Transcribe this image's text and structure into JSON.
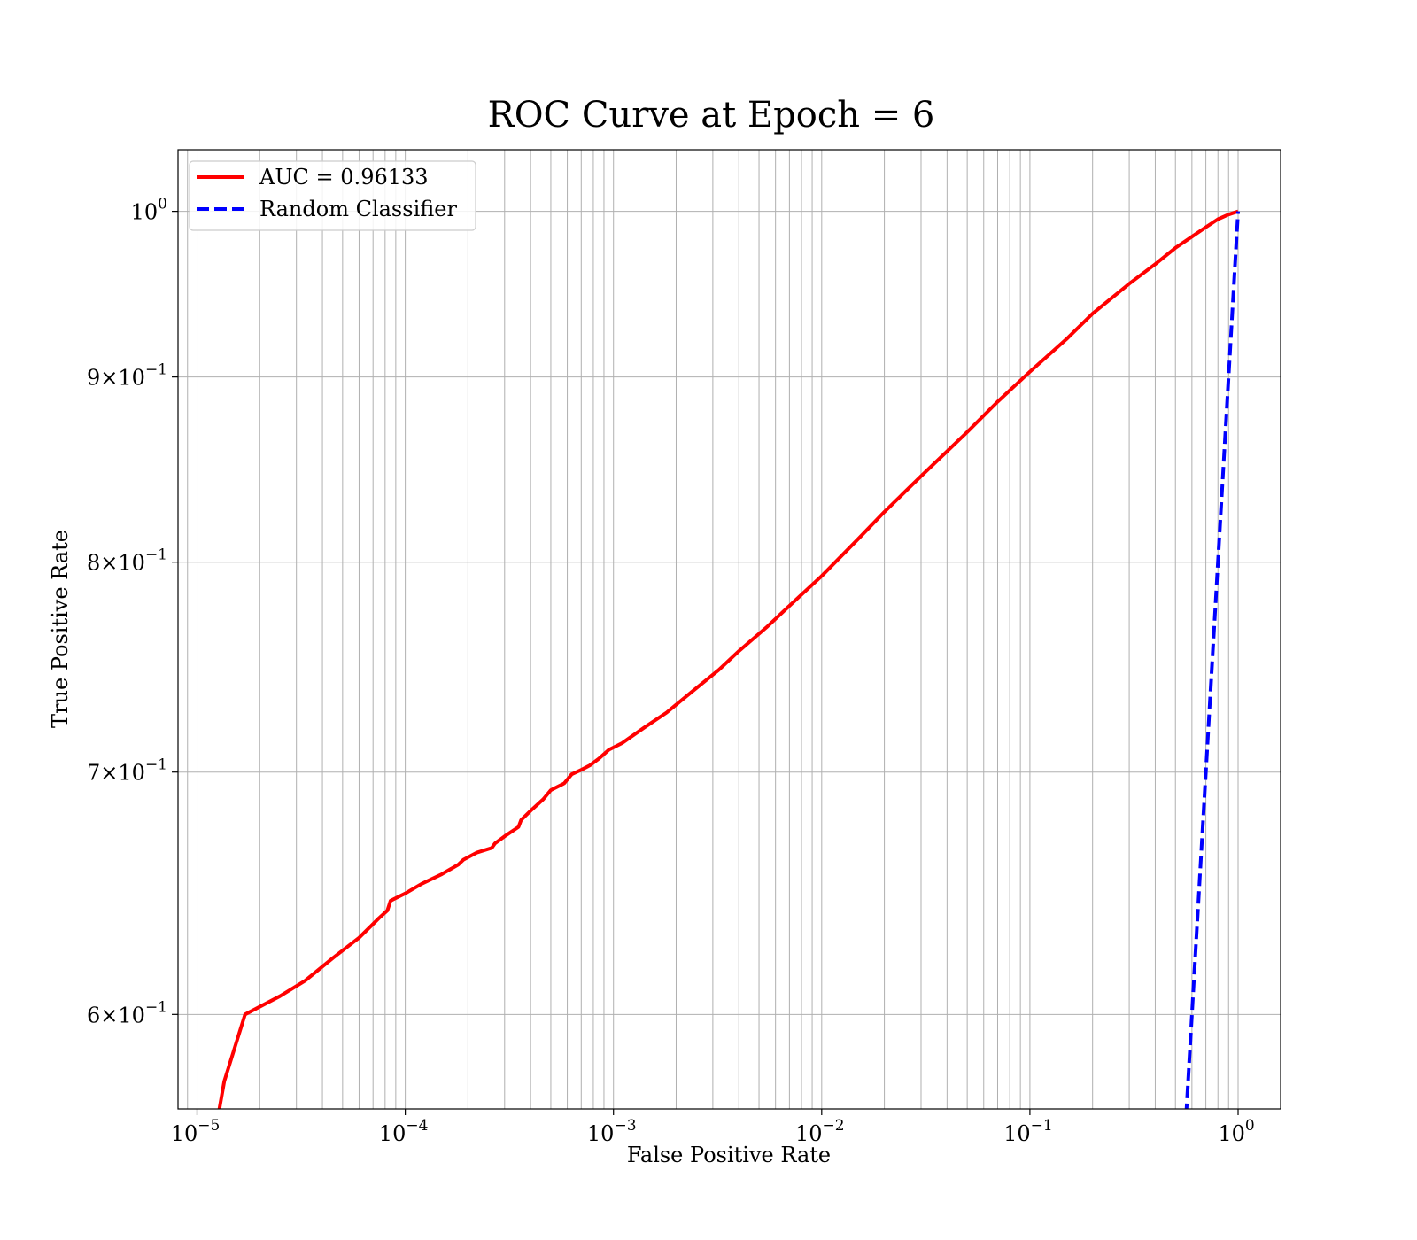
{
  "chart_data": {
    "type": "line",
    "title": "ROC Curve at Epoch = 6",
    "xlabel": "False Positive Rate",
    "ylabel": "True Positive Rate",
    "xscale": "log",
    "yscale": "log",
    "xlim": [
      8.1e-06,
      1.6
    ],
    "ylim": [
      0.565,
      1.04
    ],
    "grid": true,
    "grid_minor": true,
    "legend_placement": "upper-left",
    "x_ticks": [
      {
        "value": 1e-05,
        "base": "10",
        "exp": "−5"
      },
      {
        "value": 0.0001,
        "base": "10",
        "exp": "−4"
      },
      {
        "value": 0.001,
        "base": "10",
        "exp": "−3"
      },
      {
        "value": 0.01,
        "base": "10",
        "exp": "−2"
      },
      {
        "value": 0.1,
        "base": "10",
        "exp": "−1"
      },
      {
        "value": 1,
        "base": "10",
        "exp": "0"
      }
    ],
    "y_ticks": [
      {
        "value": 0.6,
        "base": "6×10",
        "exp": "−1"
      },
      {
        "value": 0.7,
        "base": "7×10",
        "exp": "−1"
      },
      {
        "value": 0.8,
        "base": "8×10",
        "exp": "−1"
      },
      {
        "value": 0.9,
        "base": "9×10",
        "exp": "−1"
      },
      {
        "value": 1.0,
        "base": "10",
        "exp": "0"
      }
    ],
    "series": [
      {
        "name": "AUC = 0.96133",
        "color": "#ff0000",
        "style": "solid",
        "x": [
          1.28e-05,
          1.35e-05,
          1.7e-05,
          2.5e-05,
          3.3e-05,
          4.5e-05,
          6e-05,
          7.5e-05,
          8.2e-05,
          8.5e-05,
          0.0001,
          0.00012,
          0.00015,
          0.00018,
          0.00019,
          0.00022,
          0.00026,
          0.00027,
          0.0003,
          0.00035,
          0.00036,
          0.0004,
          0.00046,
          0.0005,
          0.00058,
          0.00063,
          0.0007,
          0.00077,
          0.00085,
          0.00095,
          0.0011,
          0.0014,
          0.0018,
          0.0024,
          0.0032,
          0.004,
          0.0055,
          0.0075,
          0.01,
          0.015,
          0.02,
          0.03,
          0.05,
          0.07,
          0.1,
          0.15,
          0.2,
          0.3,
          0.4,
          0.5,
          0.6,
          0.7,
          0.8,
          0.9,
          1.0
        ],
        "y": [
          0.565,
          0.575,
          0.6,
          0.607,
          0.613,
          0.622,
          0.63,
          0.638,
          0.641,
          0.645,
          0.648,
          0.652,
          0.656,
          0.66,
          0.662,
          0.665,
          0.667,
          0.669,
          0.672,
          0.676,
          0.679,
          0.683,
          0.688,
          0.692,
          0.695,
          0.699,
          0.701,
          0.703,
          0.706,
          0.71,
          0.713,
          0.72,
          0.727,
          0.737,
          0.747,
          0.756,
          0.768,
          0.781,
          0.793,
          0.812,
          0.826,
          0.845,
          0.869,
          0.886,
          0.903,
          0.922,
          0.937,
          0.955,
          0.967,
          0.977,
          0.984,
          0.99,
          0.995,
          0.998,
          1.0
        ]
      },
      {
        "name": "Random Classifier",
        "color": "#0000ff",
        "style": "dashed",
        "x": [
          0.55,
          1.0
        ],
        "y": [
          0.55,
          1.0
        ]
      }
    ]
  }
}
